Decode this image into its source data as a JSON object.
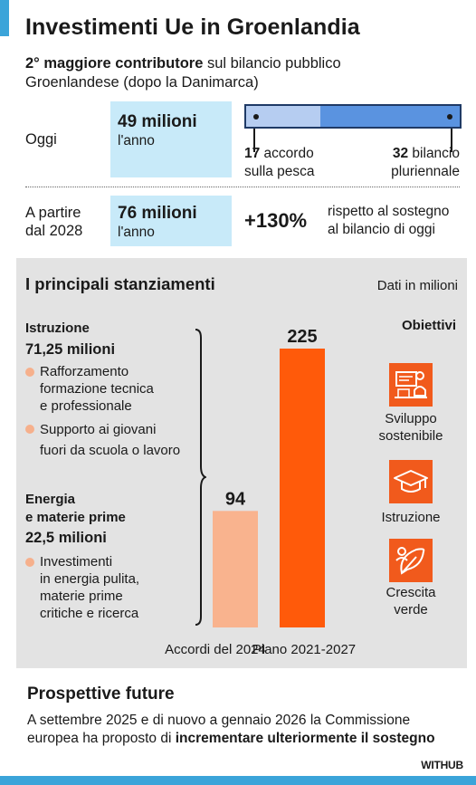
{
  "title": "Investimenti Ue in Groenlandia",
  "subtitle": {
    "bold": "2° maggiore contributore",
    "rest_line1": " sul bilancio pubblico",
    "line2": "Groenlandese (dopo la Danimarca)"
  },
  "today": {
    "label": "Oggi",
    "amount": "49 milioni",
    "period": "l'anno",
    "progress_fraction": 0.347,
    "left_segment": {
      "value": "17",
      "text1": " accordo",
      "text2": "sulla pesca"
    },
    "right_segment": {
      "value": "32",
      "text1": " bilancio",
      "text2": "pluriennale"
    }
  },
  "from2028": {
    "label_line1": "A partire",
    "label_line2": "dal 2028",
    "amount": "76 milioni",
    "period": "l'anno",
    "increase": "+130%",
    "note_line1": "rispetto al sostegno",
    "note_line2": "al bilancio di oggi"
  },
  "allocations": {
    "title": "I principali stanziamenti",
    "unit": "Dati in milioni",
    "categories": [
      {
        "name": "Istruzione",
        "amount": "71,25 milioni",
        "bullets": [
          [
            "Rafforzamento",
            "formazione tecnica",
            "e professionale"
          ],
          [
            "Supporto ai giovani",
            "fuori da scuola o lavoro"
          ]
        ]
      },
      {
        "name_line1": "Energia",
        "name_line2": "e materie prime",
        "amount": "22,5 milioni",
        "bullets": [
          [
            "Investimenti",
            "in energia pulita,",
            "materie prime",
            "critiche e ricerca"
          ]
        ]
      }
    ],
    "objectives_title": "Obiettivi",
    "objectives": [
      {
        "icon": "sustainable-development-icon",
        "line1": "Sviluppo",
        "line2": "sostenibile"
      },
      {
        "icon": "graduation-cap-icon",
        "line1": "Istruzione",
        "line2": ""
      },
      {
        "icon": "green-growth-icon",
        "line1": "Crescita",
        "line2": "verde"
      }
    ]
  },
  "chart_data": {
    "type": "bar",
    "categories": [
      "Accordi del 2024",
      "Piano 2021-2027"
    ],
    "values": [
      94,
      225
    ],
    "value_labels": [
      "94",
      "225"
    ],
    "colors": [
      "#f9b38e",
      "#ff5a0a"
    ],
    "ylim": [
      0,
      225
    ],
    "title": "I principali stanziamenti",
    "xlabel": "",
    "ylabel": "",
    "unit": "Dati in milioni",
    "grid": false,
    "legend": false
  },
  "future": {
    "title": "Prospettive future",
    "text_line1": "A settembre 2025 e di nuovo a gennaio 2026 la Commissione",
    "text_line2_plain": "europea ha proposto di ",
    "text_line2_bold": "incrementare ulteriormente il sostegno"
  },
  "brand": "WITHUB",
  "colors": {
    "accent_blue": "#3ba4d9",
    "light_blue_box": "#c8eaf9",
    "bar_light": "#b6cdf1",
    "bar_dark": "#5a93e0",
    "orange": "#ff5a0a",
    "peach": "#f9b38e",
    "panel_grey": "#e3e3e3"
  }
}
